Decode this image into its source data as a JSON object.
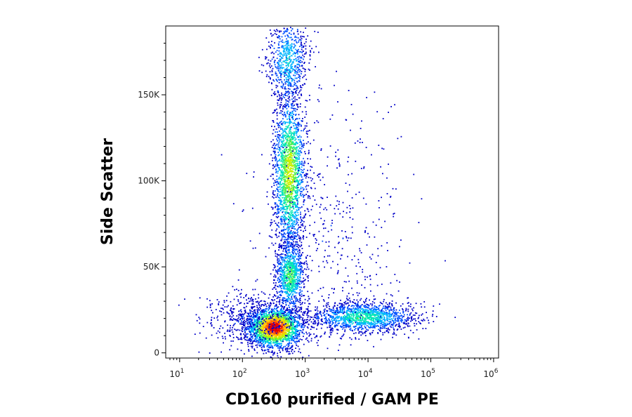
{
  "chart_data": {
    "type": "scatter",
    "subtype": "flow-cytometry-density-dot-plot",
    "title": "",
    "xlabel": "CD160 purified / GAM PE",
    "ylabel": "Side Scatter",
    "x_scale": "log",
    "xlim": [
      6,
      1200000
    ],
    "ylim": [
      -3000,
      190000
    ],
    "grid": false,
    "x_ticks": [
      {
        "value": 10,
        "base": "10",
        "exp": "1"
      },
      {
        "value": 100,
        "base": "10",
        "exp": "2"
      },
      {
        "value": 1000,
        "base": "10",
        "exp": "3"
      },
      {
        "value": 10000,
        "base": "10",
        "exp": "4"
      },
      {
        "value": 100000,
        "base": "10",
        "exp": "5"
      },
      {
        "value": 1000000,
        "base": "10",
        "exp": "6"
      }
    ],
    "y_ticks": [
      {
        "value": 0,
        "label": "0"
      },
      {
        "value": 50000,
        "label": "50K"
      },
      {
        "value": 100000,
        "label": "100K"
      },
      {
        "value": 150000,
        "label": "150K"
      }
    ],
    "colormap": [
      "#0000c8",
      "#0050ff",
      "#00b4ff",
      "#00e6b4",
      "#50f050",
      "#c8f000",
      "#ffc800",
      "#ff6400",
      "#e60000"
    ],
    "populations": [
      {
        "name_shown": false,
        "center_x": 320,
        "center_y": 15000,
        "spread_logx": 0.22,
        "spread_y": 6000,
        "count": 2200,
        "peak_density": 1.0
      },
      {
        "name_shown": false,
        "center_x": 550,
        "center_y": 105000,
        "spread_logx": 0.13,
        "spread_y": 24000,
        "count": 1800,
        "peak_density": 0.62
      },
      {
        "name_shown": false,
        "center_x": 560,
        "center_y": 45000,
        "spread_logx": 0.12,
        "spread_y": 11000,
        "count": 900,
        "peak_density": 0.48
      },
      {
        "name_shown": false,
        "center_x": 520,
        "center_y": 170000,
        "spread_logx": 0.16,
        "spread_y": 14000,
        "count": 700,
        "peak_density": 0.32
      },
      {
        "name_shown": false,
        "center_x": 8000,
        "center_y": 21000,
        "spread_logx": 0.42,
        "spread_y": 4500,
        "count": 1400,
        "peak_density": 0.42
      },
      {
        "name_shown": false,
        "center_x": 2500,
        "center_y": 70000,
        "spread_logx": 0.55,
        "spread_y": 40000,
        "count": 500,
        "peak_density": 0.08
      },
      {
        "name_shown": false,
        "center_x": 120,
        "center_y": 20000,
        "spread_logx": 0.35,
        "spread_y": 8000,
        "count": 450,
        "peak_density": 0.1
      }
    ]
  }
}
